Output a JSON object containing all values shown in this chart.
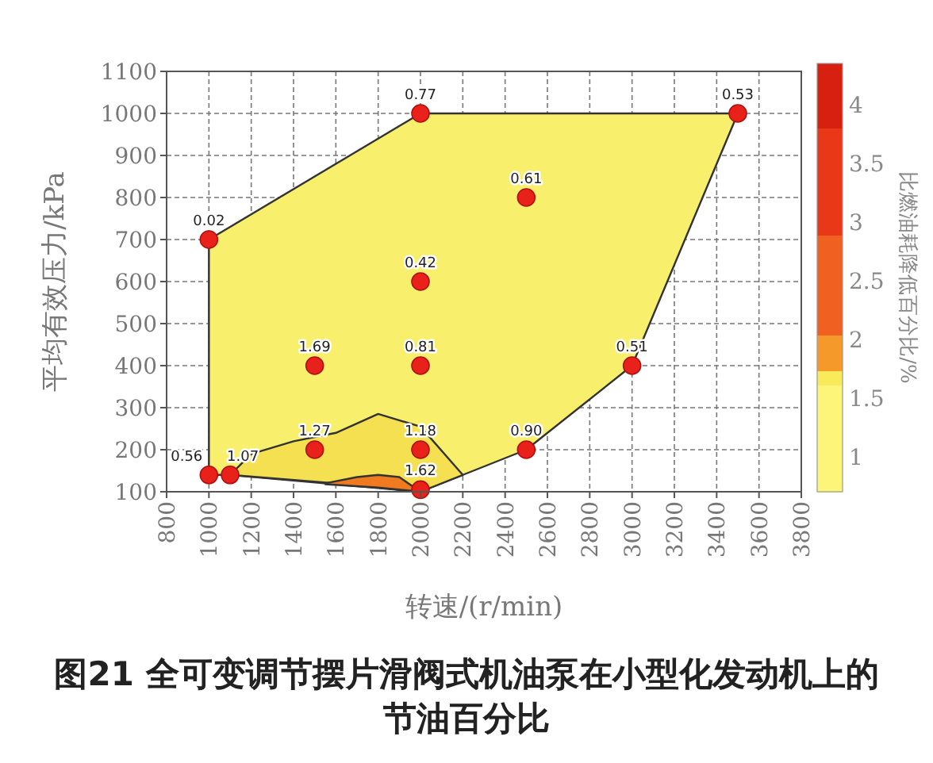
{
  "chart_data": {
    "type": "scatter",
    "title": "图21 全可变调节摆片滑阀式机油泵在小型化发动机上的节油百分比",
    "xlabel": "转速/(r/min)",
    "ylabel": "平均有效压力/kPa",
    "clabel": "比燃油耗降低百分比/%",
    "xlim": [
      800,
      3800
    ],
    "xticks": [
      800,
      1000,
      1200,
      1400,
      1600,
      1800,
      2000,
      2200,
      2400,
      2600,
      2800,
      3000,
      3200,
      3400,
      3600,
      3800
    ],
    "ylim": [
      100,
      1100
    ],
    "yticks": [
      100,
      200,
      300,
      400,
      500,
      600,
      700,
      800,
      900,
      1000,
      1100
    ],
    "clim": [
      0.7,
      4.35
    ],
    "cticks": [
      1,
      1.5,
      2,
      2.5,
      3,
      3.5,
      4
    ],
    "grid": true,
    "series": [
      {
        "type": "area",
        "color": "#f8f06c",
        "x": [
          1000,
          2000,
          3500,
          3000,
          2500,
          2000,
          1100,
          1000
        ],
        "values": [
          700,
          1000,
          1000,
          400,
          200,
          100,
          140,
          140
        ]
      },
      {
        "type": "area",
        "color": "#f4e050",
        "x": [
          1100,
          1200,
          1400,
          1600,
          1800,
          2000,
          2200,
          2000,
          1600,
          1100
        ],
        "values": [
          140,
          190,
          220,
          240,
          285,
          255,
          140,
          100,
          120,
          140
        ]
      },
      {
        "type": "area",
        "color": "#f07a20",
        "x": [
          1550,
          1700,
          1800,
          1900,
          2000,
          1800,
          1550
        ],
        "values": [
          120,
          135,
          140,
          135,
          100,
          110,
          118
        ]
      },
      {
        "color": "#e8221a",
        "marker": "circle",
        "x": [
          1000,
          2000,
          3500,
          2500,
          2000,
          1500,
          2000,
          3000,
          1000,
          1100,
          1500,
          2000,
          2500,
          2000
        ],
        "values": [
          700,
          1000,
          1000,
          800,
          600,
          400,
          400,
          400,
          140,
          140,
          200,
          200,
          200,
          105
        ]
      }
    ],
    "annotations": [
      {
        "text": "0.02",
        "x": 1000,
        "y": 700
      },
      {
        "text": "0.77",
        "x": 2000,
        "y": 1000
      },
      {
        "text": "0.53",
        "x": 3500,
        "y": 1000
      },
      {
        "text": "0.61",
        "x": 2500,
        "y": 800
      },
      {
        "text": "0.42",
        "x": 2000,
        "y": 600
      },
      {
        "text": "1.69",
        "x": 1500,
        "y": 400
      },
      {
        "text": "0.81",
        "x": 2000,
        "y": 400
      },
      {
        "text": "0.51",
        "x": 3000,
        "y": 400
      },
      {
        "text": "0.56",
        "x": 1000,
        "y": 140
      },
      {
        "text": "1.07",
        "x": 1100,
        "y": 140
      },
      {
        "text": "1.27",
        "x": 1500,
        "y": 200
      },
      {
        "text": "1.18",
        "x": 2000,
        "y": 200
      },
      {
        "text": "0.90",
        "x": 2500,
        "y": 200
      },
      {
        "text": "1.62",
        "x": 2000,
        "y": 105
      }
    ]
  }
}
